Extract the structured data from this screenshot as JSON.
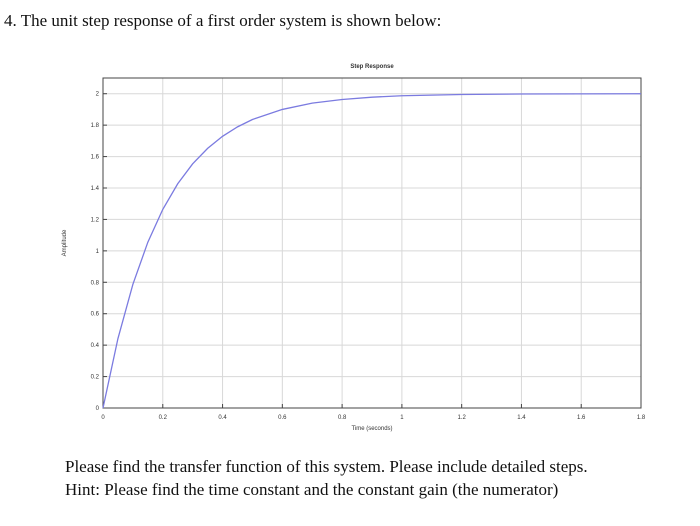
{
  "question": "4. The unit step response of a first order system is shown below:",
  "chart_data": {
    "type": "line",
    "title": "Step Response",
    "xlabel": "Time (seconds)",
    "ylabel": "Amplitude",
    "x": [
      0,
      0.05,
      0.1,
      0.15,
      0.2,
      0.25,
      0.3,
      0.35,
      0.4,
      0.45,
      0.5,
      0.6,
      0.7,
      0.8,
      0.9,
      1.0,
      1.2,
      1.4,
      1.6,
      1.8
    ],
    "values": [
      0,
      0.442,
      0.787,
      1.055,
      1.264,
      1.427,
      1.554,
      1.652,
      1.729,
      1.789,
      1.836,
      1.9,
      1.94,
      1.963,
      1.978,
      1.987,
      1.995,
      1.998,
      1.999,
      2
    ],
    "color": "#7b7be0",
    "xlim": [
      0,
      1.8
    ],
    "xticks": [
      0,
      0.2,
      0.4,
      0.6,
      0.8,
      1,
      1.2,
      1.4,
      1.6,
      1.8
    ],
    "ylim": [
      0,
      2.1
    ],
    "yticks": [
      0,
      0.2,
      0.4,
      0.6,
      0.8,
      1,
      1.2,
      1.4,
      1.6,
      1.8,
      2
    ],
    "grid": true
  },
  "instructions": [
    "Please find the transfer function of this system. Please include detailed steps.",
    "Hint: Please find the time constant and the constant gain (the numerator)"
  ]
}
